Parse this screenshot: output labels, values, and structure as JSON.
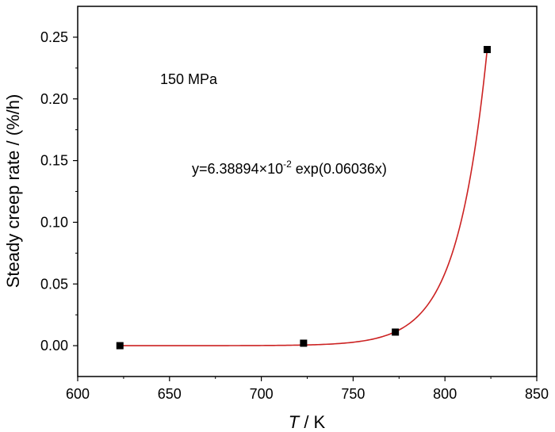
{
  "chart_data": {
    "type": "scatter",
    "title": "",
    "xlabel_var": "T",
    "xlabel_unit": " / K",
    "ylabel": "Steady creep rate / (%/h)",
    "xlim": [
      600,
      850
    ],
    "ylim": [
      -0.025,
      0.275
    ],
    "xticks": [
      600,
      650,
      700,
      750,
      800,
      850
    ],
    "yticks": [
      0.0,
      0.05,
      0.1,
      0.15,
      0.2,
      0.25
    ],
    "ytick_labels": [
      "0.00",
      "0.05",
      "0.10",
      "0.15",
      "0.20",
      "0.25"
    ],
    "grid": false,
    "series": [
      {
        "x": [
          623,
          723,
          773,
          823
        ],
        "y": [
          0.0,
          0.002,
          0.011,
          0.24
        ],
        "marker": "square",
        "color": "#000000"
      }
    ],
    "fit": {
      "color": "#cc2222",
      "x_range": [
        623,
        823
      ],
      "equation_prefix": "y=6.38894×10",
      "equation_exp": "-2",
      "equation_suffix": " exp(0.06036x)"
    },
    "annotations": {
      "condition": "150 MPa"
    }
  }
}
